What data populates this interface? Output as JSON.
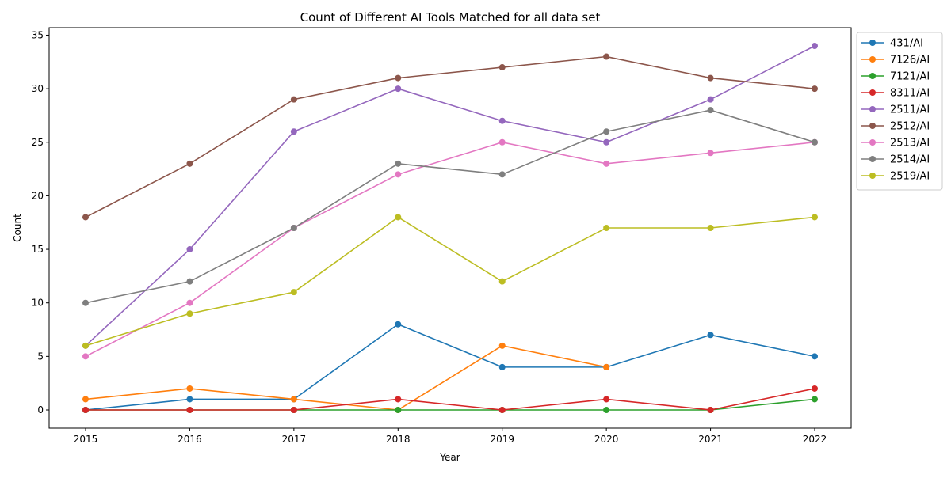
{
  "chart_data": {
    "type": "line",
    "title": "Count of Different AI Tools Matched for all data set",
    "xlabel": "Year",
    "ylabel": "Count",
    "x": [
      2015,
      2016,
      2017,
      2018,
      2019,
      2020,
      2021,
      2022
    ],
    "xlim": [
      2014.65,
      2022.35
    ],
    "ylim": [
      -1.7,
      35.7
    ],
    "yticks": [
      0,
      5,
      10,
      15,
      20,
      25,
      30,
      35
    ],
    "grid": false,
    "legend_position": "outside-right-top",
    "series": [
      {
        "name": "431/AI",
        "color": "#1f77b4",
        "values": [
          0,
          1,
          1,
          8,
          4,
          4,
          7,
          5
        ]
      },
      {
        "name": "7126/AI",
        "color": "#ff7f0e",
        "values": [
          1,
          2,
          1,
          0,
          6,
          4,
          null,
          null
        ]
      },
      {
        "name": "7121/AI",
        "color": "#2ca02c",
        "values": [
          0,
          0,
          0,
          0,
          0,
          0,
          0,
          1
        ]
      },
      {
        "name": "8311/AI",
        "color": "#d62728",
        "values": [
          0,
          0,
          0,
          1,
          0,
          1,
          0,
          2
        ]
      },
      {
        "name": "2511/AI",
        "color": "#9467bd",
        "values": [
          6,
          15,
          26,
          30,
          27,
          25,
          29,
          34
        ]
      },
      {
        "name": "2512/AI",
        "color": "#8c564b",
        "values": [
          18,
          23,
          29,
          31,
          32,
          33,
          31,
          30
        ]
      },
      {
        "name": "2513/AI",
        "color": "#e377c2",
        "values": [
          5,
          10,
          17,
          22,
          25,
          23,
          24,
          25
        ]
      },
      {
        "name": "2514/AI",
        "color": "#7f7f7f",
        "values": [
          10,
          12,
          17,
          23,
          22,
          26,
          28,
          25
        ]
      },
      {
        "name": "2519/AI",
        "color": "#bcbd22",
        "values": [
          6,
          9,
          11,
          18,
          12,
          17,
          17,
          18
        ]
      }
    ]
  }
}
